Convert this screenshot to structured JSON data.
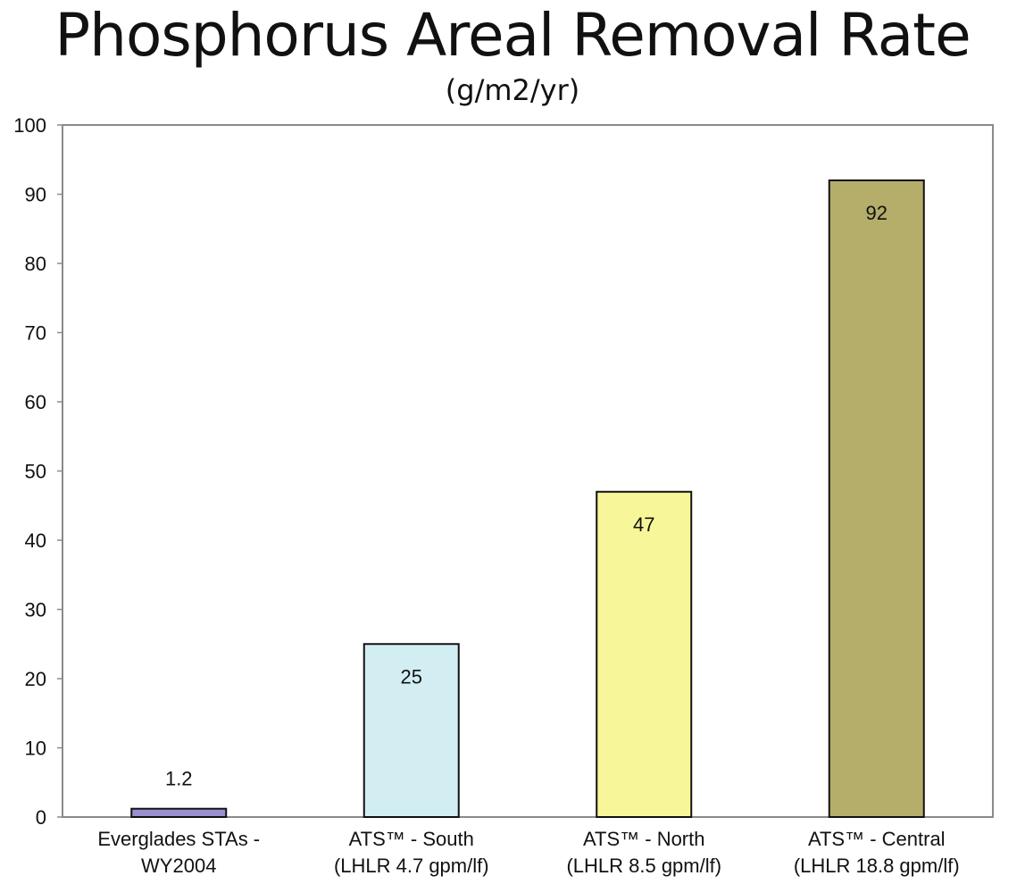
{
  "chart_data": {
    "type": "bar",
    "title": "Phosphorus Areal Removal Rate",
    "subtitle": "(g/m2/yr)",
    "xlabel": "",
    "ylabel": "",
    "ylim": [
      0,
      100
    ],
    "yticks": [
      "0",
      "10",
      "20",
      "30",
      "40",
      "50",
      "60",
      "70",
      "80",
      "90",
      "100"
    ],
    "grid": false,
    "categories": [
      [
        "Everglades STAs -",
        "WY2004"
      ],
      [
        "ATS™ - South",
        "(LHLR 4.7 gpm/lf)"
      ],
      [
        "ATS™ - North",
        "(LHLR 8.5 gpm/lf)"
      ],
      [
        "ATS™ - Central",
        "(LHLR 18.8 gpm/lf)"
      ]
    ],
    "values": [
      1.2,
      25,
      47,
      92
    ],
    "value_labels": [
      "1.2",
      "25",
      "47",
      "92"
    ],
    "colors": [
      "#9b8fcf",
      "#d2eef3",
      "#f7f799",
      "#b5ad6a"
    ],
    "frame_color": "#8a8a8a"
  }
}
